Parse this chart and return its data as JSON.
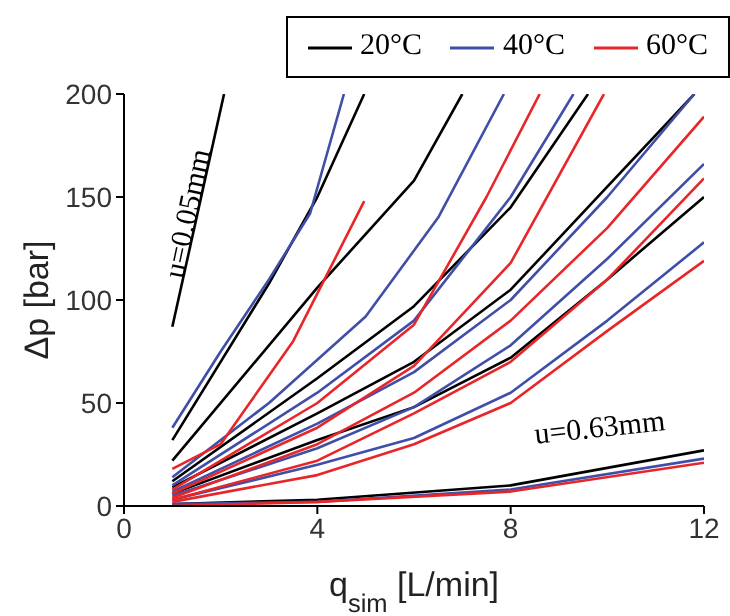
{
  "chart_data": {
    "type": "line",
    "xlabel": "q$_{sim}$ [L/min]",
    "ylabel": "Δp [bar]",
    "xlim": [
      0,
      12
    ],
    "xticks": [
      0,
      4,
      8,
      12
    ],
    "ylim": [
      0,
      200
    ],
    "yticks": [
      0,
      50,
      100,
      150,
      200
    ],
    "grid": false,
    "legend": "top right",
    "marker": "none",
    "line_style": "solid",
    "annotations": [
      "u=0.05mm",
      "u=0.63mm"
    ],
    "series": [
      {
        "name": "20°C",
        "color": "#000000",
        "x": [
          1,
          2.07
        ],
        "values": [
          87,
          200
        ]
      },
      {
        "color": "#000000",
        "x": [
          1,
          3,
          4,
          4.97
        ],
        "values": [
          32,
          108,
          150,
          200
        ]
      },
      {
        "color": "#000000",
        "x": [
          1,
          4,
          6,
          7
        ],
        "values": [
          22,
          106,
          158,
          200
        ]
      },
      {
        "color": "#000000",
        "x": [
          1,
          4,
          6,
          8,
          9.6
        ],
        "values": [
          12,
          62,
          97,
          145,
          200
        ]
      },
      {
        "color": "#000000",
        "x": [
          1,
          4,
          6,
          8,
          10,
          11.8
        ],
        "values": [
          9,
          45,
          70,
          105,
          155,
          200
        ]
      },
      {
        "color": "#000000",
        "x": [
          1,
          4,
          6,
          8,
          10,
          12
        ],
        "values": [
          6,
          32,
          48,
          72,
          110,
          150
        ]
      },
      {
        "color": "#000000",
        "x": [
          1,
          4,
          8,
          12
        ],
        "values": [
          1,
          3,
          10,
          27
        ]
      },
      {
        "name": "40°C",
        "color": "#3f4fa8",
        "x": [
          1,
          2,
          3,
          3.85,
          4.55
        ],
        "values": [
          38,
          75,
          110,
          142,
          200
        ]
      },
      {
        "color": "#3f4fa8",
        "x": [
          1,
          3,
          5,
          6.5,
          7.86
        ],
        "values": [
          14,
          50,
          92,
          140,
          200
        ]
      },
      {
        "color": "#3f4fa8",
        "x": [
          1,
          4,
          6,
          8,
          9.3
        ],
        "values": [
          10,
          55,
          90,
          150,
          200
        ]
      },
      {
        "color": "#3f4fa8",
        "x": [
          1,
          4,
          6,
          8,
          10,
          11.8
        ],
        "values": [
          7,
          40,
          65,
          100,
          150,
          200
        ]
      },
      {
        "color": "#3f4fa8",
        "x": [
          1,
          4,
          6,
          8,
          10,
          12
        ],
        "values": [
          5,
          28,
          48,
          78,
          120,
          166
        ]
      },
      {
        "color": "#3f4fa8",
        "x": [
          1,
          4,
          6,
          8,
          10,
          12
        ],
        "values": [
          3,
          20,
          33,
          55,
          90,
          128
        ]
      },
      {
        "color": "#3f4fa8",
        "x": [
          1,
          4,
          8,
          12
        ],
        "values": [
          1,
          2,
          8,
          23
        ]
      },
      {
        "name": "60°C",
        "color": "#e8262a",
        "x": [
          1,
          2,
          3.5,
          4.97
        ],
        "values": [
          18,
          30,
          80,
          148
        ]
      },
      {
        "color": "#e8262a",
        "x": [
          1,
          4,
          6,
          7.5,
          8.6
        ],
        "values": [
          8,
          50,
          88,
          150,
          200
        ]
      },
      {
        "color": "#e8262a",
        "x": [
          1,
          4,
          6,
          8,
          9.93
        ],
        "values": [
          6,
          38,
          68,
          118,
          200
        ]
      },
      {
        "color": "#e8262a",
        "x": [
          1,
          4,
          6,
          8,
          10,
          12
        ],
        "values": [
          4,
          30,
          55,
          90,
          135,
          189
        ]
      },
      {
        "color": "#e8262a",
        "x": [
          1,
          4,
          6,
          8,
          10,
          12
        ],
        "values": [
          3,
          22,
          45,
          70,
          110,
          159
        ]
      },
      {
        "color": "#e8262a",
        "x": [
          1,
          4,
          6,
          8,
          10,
          12
        ],
        "values": [
          2,
          15,
          30,
          50,
          85,
          119
        ]
      },
      {
        "color": "#e8262a",
        "x": [
          1,
          4,
          8,
          12
        ],
        "values": [
          0,
          2,
          7,
          21
        ]
      }
    ]
  }
}
